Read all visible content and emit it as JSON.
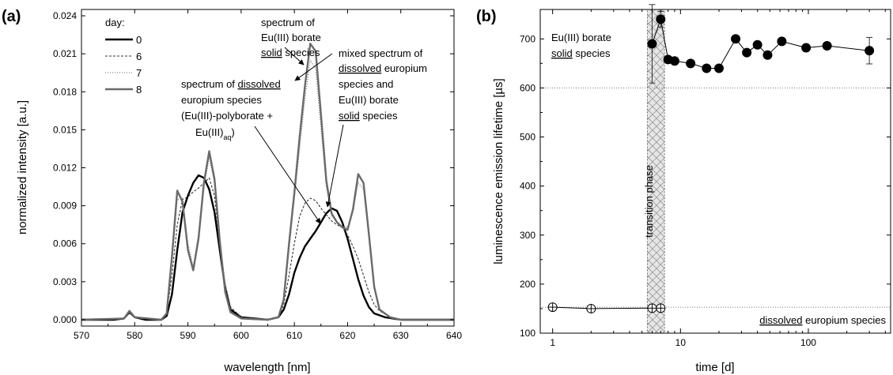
{
  "figure": {
    "background": "#ffffff"
  },
  "chart_data": [
    {
      "panel": "(a)",
      "type": "line",
      "xlabel": "wavelength [nm]",
      "ylabel": "normalized intensity [a.u.]",
      "xlim": [
        570,
        640
      ],
      "ylim": [
        -0.0005,
        0.0245
      ],
      "xticks": [
        570,
        580,
        590,
        600,
        610,
        620,
        630,
        640
      ],
      "yticks": [
        "0.000",
        "0.003",
        "0.006",
        "0.009",
        "0.012",
        "0.015",
        "0.018",
        "0.021",
        "0.024"
      ],
      "grid": false,
      "legend": {
        "title": "day:",
        "placement": "top-left"
      },
      "series": [
        {
          "name": "0",
          "color": "#000000",
          "dash": "solid",
          "points": [
            [
              570,
              0
            ],
            [
              576,
              0
            ],
            [
              578,
              0.0001
            ],
            [
              579,
              0.0006
            ],
            [
              580,
              0.0002
            ],
            [
              582,
              0
            ],
            [
              585,
              0
            ],
            [
              586,
              0.0003
            ],
            [
              587,
              0.002
            ],
            [
              588,
              0.0055
            ],
            [
              589,
              0.0085
            ],
            [
              590,
              0.0098
            ],
            [
              591,
              0.0108
            ],
            [
              592,
              0.0114
            ],
            [
              593,
              0.0112
            ],
            [
              594,
              0.0103
            ],
            [
              595,
              0.0085
            ],
            [
              596,
              0.0055
            ],
            [
              597,
              0.0025
            ],
            [
              598,
              0.0008
            ],
            [
              600,
              0.0002
            ],
            [
              605,
              0
            ],
            [
              607,
              0.0002
            ],
            [
              608,
              0.0008
            ],
            [
              609,
              0.002
            ],
            [
              610,
              0.0037
            ],
            [
              611,
              0.0049
            ],
            [
              612,
              0.0058
            ],
            [
              613,
              0.0064
            ],
            [
              614,
              0.007
            ],
            [
              615,
              0.0077
            ],
            [
              616,
              0.0084
            ],
            [
              617,
              0.0088
            ],
            [
              618,
              0.0086
            ],
            [
              619,
              0.0077
            ],
            [
              620,
              0.0064
            ],
            [
              621,
              0.0048
            ],
            [
              622,
              0.0032
            ],
            [
              623,
              0.0019
            ],
            [
              624,
              0.001
            ],
            [
              625,
              0.0005
            ],
            [
              627,
              0.0002
            ],
            [
              630,
              0
            ],
            [
              640,
              0
            ]
          ]
        },
        {
          "name": "6",
          "color": "#333333",
          "dash": "dashed",
          "points": [
            [
              570,
              0
            ],
            [
              578,
              0.0001
            ],
            [
              579,
              0.0005
            ],
            [
              580,
              0.0002
            ],
            [
              585,
              0
            ],
            [
              586,
              0.0005
            ],
            [
              587,
              0.0035
            ],
            [
              588,
              0.0075
            ],
            [
              589,
              0.0095
            ],
            [
              590,
              0.0097
            ],
            [
              591,
              0.0101
            ],
            [
              592,
              0.0104
            ],
            [
              593,
              0.0108
            ],
            [
              594,
              0.0112
            ],
            [
              595,
              0.0098
            ],
            [
              596,
              0.006
            ],
            [
              597,
              0.0028
            ],
            [
              598,
              0.001
            ],
            [
              600,
              0.0002
            ],
            [
              605,
              0
            ],
            [
              607,
              0.0002
            ],
            [
              608,
              0.0012
            ],
            [
              609,
              0.0035
            ],
            [
              610,
              0.006
            ],
            [
              611,
              0.0082
            ],
            [
              612,
              0.0092
            ],
            [
              613,
              0.0096
            ],
            [
              614,
              0.0094
            ],
            [
              615,
              0.0088
            ],
            [
              616,
              0.0083
            ],
            [
              617,
              0.0078
            ],
            [
              618,
              0.0075
            ],
            [
              619,
              0.0073
            ],
            [
              620,
              0.0067
            ],
            [
              621,
              0.0058
            ],
            [
              622,
              0.0048
            ],
            [
              623,
              0.0035
            ],
            [
              624,
              0.0022
            ],
            [
              625,
              0.0012
            ],
            [
              626,
              0.0007
            ],
            [
              628,
              0.0002
            ],
            [
              630,
              0
            ],
            [
              640,
              0
            ]
          ]
        },
        {
          "name": "7",
          "color": "#666666",
          "dash": "dotted",
          "points": [
            [
              570,
              0
            ],
            [
              578,
              0.0001
            ],
            [
              579,
              0.0006
            ],
            [
              580,
              0.0002
            ],
            [
              585,
              0
            ],
            [
              586,
              0.0004
            ],
            [
              587,
              0.0045
            ],
            [
              588,
              0.0095
            ],
            [
              589,
              0.0096
            ],
            [
              590,
              0.006
            ],
            [
              591,
              0.0042
            ],
            [
              592,
              0.0068
            ],
            [
              593,
              0.0105
            ],
            [
              594,
              0.0128
            ],
            [
              595,
              0.0108
            ],
            [
              596,
              0.006
            ],
            [
              597,
              0.0022
            ],
            [
              598,
              0.0006
            ],
            [
              600,
              0.0001
            ],
            [
              605,
              0
            ],
            [
              607,
              0.0002
            ],
            [
              608,
              0.0015
            ],
            [
              609,
              0.0055
            ],
            [
              610,
              0.0095
            ],
            [
              611,
              0.0135
            ],
            [
              612,
              0.0175
            ],
            [
              613,
              0.0205
            ],
            [
              614,
              0.0198
            ],
            [
              615,
              0.0152
            ],
            [
              616,
              0.0105
            ],
            [
              617,
              0.0082
            ],
            [
              618,
              0.0077
            ],
            [
              619,
              0.0074
            ],
            [
              620,
              0.0073
            ],
            [
              621,
              0.0085
            ],
            [
              622,
              0.0108
            ],
            [
              623,
              0.0103
            ],
            [
              624,
              0.0065
            ],
            [
              625,
              0.0025
            ],
            [
              626,
              0.0008
            ],
            [
              628,
              0.0002
            ],
            [
              630,
              0
            ],
            [
              640,
              0
            ]
          ]
        },
        {
          "name": "8",
          "color": "#6a6a6a",
          "dash": "solid",
          "points": [
            [
              570,
              0
            ],
            [
              578,
              0.0001
            ],
            [
              579,
              0.0007
            ],
            [
              580,
              0.0002
            ],
            [
              585,
              0
            ],
            [
              586,
              0.0005
            ],
            [
              587,
              0.005
            ],
            [
              588,
              0.0102
            ],
            [
              589,
              0.0093
            ],
            [
              590,
              0.0055
            ],
            [
              591,
              0.0039
            ],
            [
              592,
              0.0064
            ],
            [
              593,
              0.0108
            ],
            [
              594,
              0.0133
            ],
            [
              595,
              0.0111
            ],
            [
              596,
              0.0062
            ],
            [
              597,
              0.0022
            ],
            [
              598,
              0.0006
            ],
            [
              600,
              0.0001
            ],
            [
              605,
              0
            ],
            [
              607,
              0.0002
            ],
            [
              608,
              0.0016
            ],
            [
              609,
              0.006
            ],
            [
              610,
              0.01
            ],
            [
              611,
              0.0145
            ],
            [
              612,
              0.0185
            ],
            [
              613,
              0.0218
            ],
            [
              614,
              0.0212
            ],
            [
              615,
              0.0162
            ],
            [
              616,
              0.011
            ],
            [
              617,
              0.0084
            ],
            [
              618,
              0.0077
            ],
            [
              619,
              0.0073
            ],
            [
              620,
              0.0071
            ],
            [
              621,
              0.0087
            ],
            [
              622,
              0.0115
            ],
            [
              623,
              0.0108
            ],
            [
              624,
              0.0068
            ],
            [
              625,
              0.0026
            ],
            [
              626,
              0.0008
            ],
            [
              628,
              0.0002
            ],
            [
              630,
              0
            ],
            [
              640,
              0
            ]
          ]
        }
      ],
      "annotations": {
        "solid": [
          "spectrum of",
          "Eu(III) borate",
          "solid",
          " species"
        ],
        "mixed": [
          "mixed spectrum of",
          "dissolved",
          " europium",
          "species and",
          "Eu(III) borate",
          "solid",
          " species"
        ],
        "dissolved": [
          "spectrum of ",
          "dissolved",
          "europium species",
          "(Eu(III)-polyborate +",
          "Eu(III)",
          "aq",
          ")"
        ]
      }
    },
    {
      "panel": "(b)",
      "type": "scatter",
      "xlabel": "time [d]",
      "ylabel": "luminescence emission lifetime [µs]",
      "xscale": "log",
      "xlim": [
        0.8,
        440
      ],
      "ylim": [
        100,
        760
      ],
      "xticks": [
        "1",
        "10",
        "100"
      ],
      "yticks": [
        "100",
        "200",
        "300",
        "400",
        "500",
        "600",
        "700"
      ],
      "grid": false,
      "reference_lines": [
        600,
        153
      ],
      "transition_phase": {
        "label": "transition phase",
        "x_range": [
          5.5,
          7.5
        ]
      },
      "series": [
        {
          "name": "Eu(III) borate solid species",
          "marker": "filled-circle",
          "color": "#000000",
          "points": [
            [
              6.0,
              690
            ],
            [
              7.0,
              740
            ],
            [
              8.0,
              658
            ],
            [
              9.0,
              655
            ],
            [
              12.0,
              650
            ],
            [
              16.0,
              640
            ],
            [
              20.0,
              640
            ],
            [
              27.0,
              700
            ],
            [
              33.0,
              672
            ],
            [
              40.0,
              688
            ],
            [
              48.0,
              667
            ],
            [
              62.0,
              695
            ],
            [
              96.0,
              682
            ],
            [
              140.0,
              686
            ],
            [
              300.0,
              676
            ]
          ],
          "error_bars": [
            [
              6.0,
              690,
              80
            ],
            [
              7.0,
              740,
              16
            ],
            [
              300.0,
              676,
              27
            ]
          ]
        },
        {
          "name": "dissolved europium species",
          "marker": "open-circle-cross",
          "color": "#000000",
          "points": [
            [
              1.0,
              153
            ],
            [
              2.0,
              150
            ],
            [
              6.0,
              151
            ],
            [
              7.0,
              151
            ]
          ]
        }
      ],
      "annotations": {
        "solid": [
          "Eu(III) borate",
          "solid",
          " species"
        ],
        "dissolved": [
          "dissolved",
          " europium species"
        ]
      }
    }
  ]
}
